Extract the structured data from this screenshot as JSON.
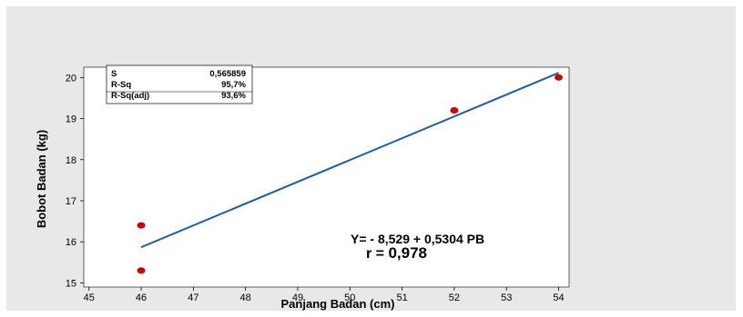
{
  "chart_data": {
    "type": "scatter",
    "title": "",
    "xlabel": "Panjang Badan (cm)",
    "ylabel": "Bobot Badan (kg)",
    "xlim": [
      44.9,
      54.2
    ],
    "ylim": [
      14.9,
      20.25
    ],
    "x_ticks": [
      45,
      46,
      47,
      48,
      49,
      50,
      51,
      52,
      53,
      54
    ],
    "y_ticks": [
      15,
      16,
      17,
      18,
      19,
      20
    ],
    "grid": false,
    "points": [
      {
        "x": 46,
        "y": 16.4
      },
      {
        "x": 46,
        "y": 15.3
      },
      {
        "x": 52,
        "y": 19.2
      },
      {
        "x": 54,
        "y": 20.0
      }
    ],
    "fit_line": {
      "x": [
        46,
        54
      ],
      "y": [
        15.869,
        20.113
      ]
    },
    "point_color": "#cc0000",
    "line_color": "#1f5fa6",
    "stats_table": [
      {
        "label": "S",
        "value": "0,565859"
      },
      {
        "label": "R-Sq",
        "value": "95,7%"
      },
      {
        "label": "R-Sq(adj)",
        "value": "93,6%"
      }
    ],
    "equation": "Y= - 8,529 + 0,5304 PB",
    "r_label": "r = ",
    "r_value": "0,978"
  }
}
